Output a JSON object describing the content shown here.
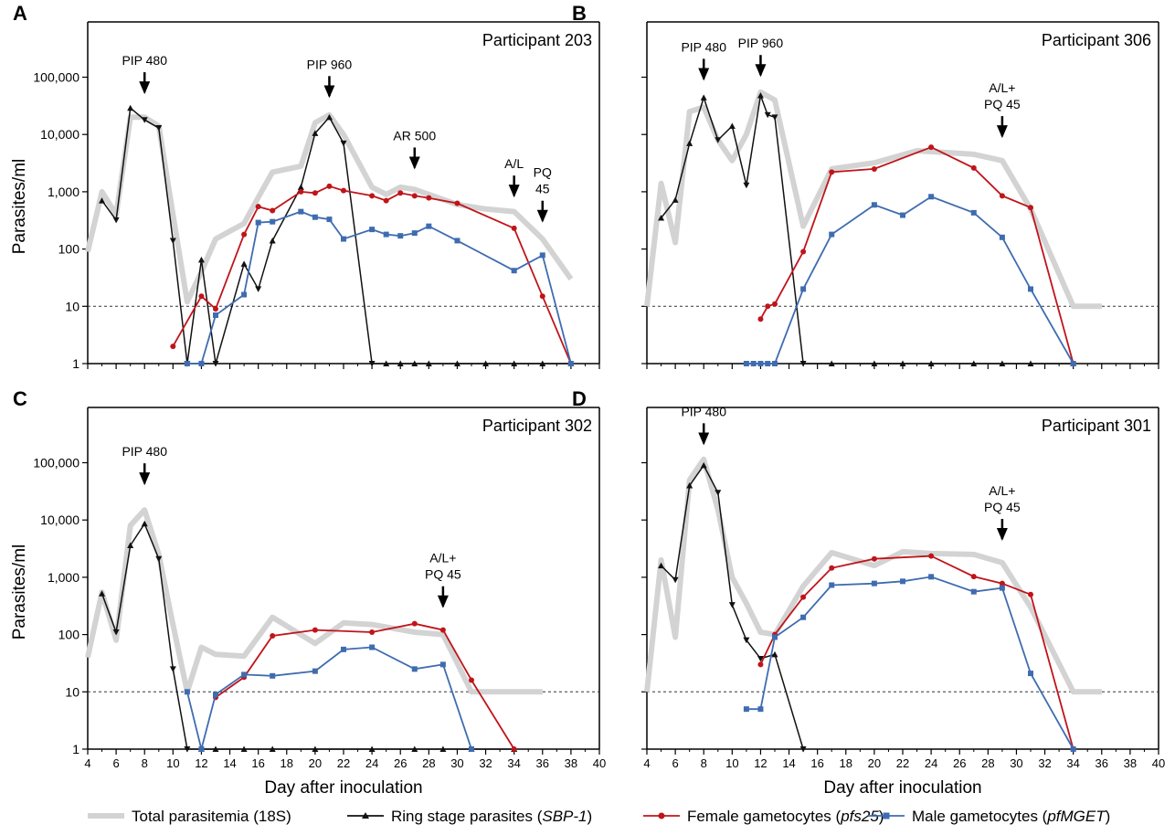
{
  "figure": {
    "ylabel": "Parasites/ml",
    "xlabel": "Day after inoculation",
    "x_ticks": [
      4,
      6,
      8,
      10,
      12,
      14,
      16,
      18,
      20,
      22,
      24,
      26,
      28,
      30,
      32,
      34,
      36,
      38,
      40
    ],
    "y_ticks": [
      {
        "value": 1,
        "label": "1"
      },
      {
        "value": 10,
        "label": "10"
      },
      {
        "value": 100,
        "label": "100"
      },
      {
        "value": 1000,
        "label": "1,000"
      },
      {
        "value": 10000,
        "label": "10,000"
      },
      {
        "value": 100000,
        "label": "100,000"
      }
    ],
    "legend": [
      {
        "key": "total",
        "prefix": "Total parasitemia (18S)",
        "gene": "",
        "suffix": ""
      },
      {
        "key": "ring",
        "prefix": "Ring stage parasites (",
        "gene": "SBP-1",
        "suffix": ")"
      },
      {
        "key": "female",
        "prefix": "Female gametocytes (",
        "gene": "pfs25",
        "suffix": ")"
      },
      {
        "key": "male",
        "prefix": "Male gametocytes (",
        "gene": "pfMGET",
        "suffix": ")"
      }
    ],
    "colors": {
      "total": "#d3d3d3",
      "ring": "#111111",
      "female": "#c0141a",
      "male": "#3f6cb0"
    }
  },
  "chart_data": [
    {
      "type": "line",
      "panel": "A",
      "title": "Participant 203",
      "xlim": [
        4,
        40
      ],
      "ylim": [
        1,
        1000000
      ],
      "yscale": "log",
      "detection_limit": 10,
      "annotations": [
        {
          "text": [
            "PIP 480"
          ],
          "x": 8,
          "arrow_to": 35000
        },
        {
          "text": [
            "PIP 960"
          ],
          "x": 21,
          "arrow_to": 30000
        },
        {
          "text": [
            "AR 500"
          ],
          "x": 27,
          "arrow_to": 1700
        },
        {
          "text": [
            "A/L"
          ],
          "x": 34,
          "arrow_to": 550
        },
        {
          "text": [
            "PQ",
            "45"
          ],
          "x": 36,
          "arrow_to": 200
        }
      ],
      "series": [
        {
          "key": "total",
          "x": [
            4,
            5,
            6,
            7,
            8,
            9,
            10,
            11,
            12,
            13,
            15,
            16,
            17,
            19,
            20,
            21,
            22,
            24,
            25,
            26,
            27,
            28,
            30,
            32,
            34,
            36,
            38
          ],
          "y": [
            90,
            1000,
            400,
            20000,
            20000,
            14000,
            400,
            12,
            40,
            150,
            280,
            800,
            2200,
            2800,
            16000,
            22000,
            10000,
            1200,
            900,
            1200,
            1100,
            900,
            600,
            500,
            450,
            150,
            30
          ]
        },
        {
          "key": "ring",
          "x": [
            5,
            6,
            7,
            8,
            9,
            10,
            11,
            12,
            13,
            15,
            16,
            17,
            19,
            20,
            21,
            22,
            24,
            25,
            26,
            27,
            28,
            30,
            32,
            34,
            36,
            38
          ],
          "y": [
            700,
            320,
            29000,
            18000,
            13000,
            140,
            1,
            65,
            1,
            55,
            20,
            140,
            1200,
            10500,
            20000,
            7000,
            1,
            1,
            1,
            1,
            1,
            1,
            1,
            1,
            1,
            1
          ]
        },
        {
          "key": "female",
          "x": [
            10,
            12,
            13,
            15,
            16,
            17,
            19,
            20,
            21,
            22,
            24,
            25,
            26,
            27,
            28,
            30,
            34,
            36,
            38
          ],
          "y": [
            2,
            15,
            9,
            180,
            550,
            470,
            1000,
            950,
            1250,
            1050,
            850,
            700,
            950,
            850,
            780,
            630,
            230,
            15,
            1
          ]
        },
        {
          "key": "male",
          "x": [
            11,
            12,
            13,
            15,
            16,
            17,
            19,
            20,
            21,
            22,
            24,
            25,
            26,
            27,
            28,
            30,
            34,
            36,
            38
          ],
          "y": [
            1,
            1,
            7,
            16,
            290,
            300,
            450,
            360,
            330,
            150,
            220,
            180,
            170,
            190,
            250,
            140,
            42,
            78,
            1
          ]
        }
      ]
    },
    {
      "type": "line",
      "panel": "B",
      "title": "Participant 306",
      "xlim": [
        4,
        40
      ],
      "ylim": [
        1,
        1000000
      ],
      "yscale": "log",
      "detection_limit": 10,
      "annotations": [
        {
          "text": [
            "PIP 480"
          ],
          "x": 8,
          "arrow_to": 60000
        },
        {
          "text": [
            "PIP 960"
          ],
          "x": 12,
          "arrow_to": 70000
        },
        {
          "text": [
            "A/L+",
            "PQ 45"
          ],
          "x": 29,
          "arrow_to": 6000
        }
      ],
      "series": [
        {
          "key": "total",
          "x": [
            4,
            5,
            6,
            7,
            8,
            9,
            10,
            11,
            12,
            13,
            15,
            17,
            20,
            23,
            27,
            29,
            31,
            34,
            36
          ],
          "y": [
            10,
            1400,
            130,
            25000,
            30000,
            8000,
            3500,
            10000,
            55000,
            40000,
            250,
            2500,
            3200,
            5200,
            4500,
            3500,
            500,
            10,
            10
          ]
        },
        {
          "key": "ring",
          "x": [
            5,
            6,
            7,
            8,
            9,
            10,
            11,
            12,
            12.5,
            13,
            15,
            17,
            20,
            22,
            24,
            27,
            29,
            31,
            34
          ],
          "y": [
            350,
            720,
            7000,
            44000,
            8000,
            14000,
            1300,
            48000,
            22000,
            20000,
            1,
            1,
            1,
            1,
            1,
            1,
            1,
            1,
            1
          ]
        },
        {
          "key": "female",
          "x": [
            12,
            12.5,
            13,
            15,
            17,
            20,
            24,
            27,
            29,
            31,
            34
          ],
          "y": [
            6,
            10,
            11,
            90,
            2200,
            2500,
            6000,
            2600,
            850,
            530,
            1
          ]
        },
        {
          "key": "male",
          "x": [
            11,
            11.5,
            12,
            12.5,
            13,
            15,
            17,
            20,
            22,
            24,
            27,
            29,
            31,
            34
          ],
          "y": [
            1,
            1,
            1,
            1,
            1,
            20,
            180,
            590,
            390,
            820,
            430,
            160,
            20,
            1
          ]
        }
      ]
    },
    {
      "type": "line",
      "panel": "C",
      "title": "Participant 302",
      "xlim": [
        4,
        40
      ],
      "ylim": [
        1,
        1000000
      ],
      "yscale": "log",
      "detection_limit": 10,
      "annotations": [
        {
          "text": [
            "PIP 480"
          ],
          "x": 8,
          "arrow_to": 28000
        },
        {
          "text": [
            "A/L+",
            "PQ 45"
          ],
          "x": 29,
          "arrow_to": 200
        }
      ],
      "series": [
        {
          "key": "total",
          "x": [
            4,
            5,
            6,
            7,
            8,
            9,
            10,
            11,
            12,
            13,
            15,
            17,
            20,
            22,
            24,
            27,
            29,
            31,
            34,
            36
          ],
          "y": [
            40,
            550,
            80,
            8000,
            15000,
            2500,
            150,
            10,
            60,
            45,
            42,
            200,
            70,
            160,
            150,
            110,
            100,
            10,
            10,
            10
          ]
        },
        {
          "key": "ring",
          "x": [
            5,
            6,
            7,
            8,
            9,
            10,
            11,
            12,
            13,
            15,
            17,
            20,
            24,
            27,
            29,
            31,
            34
          ],
          "y": [
            520,
            110,
            3600,
            8600,
            2100,
            25,
            1,
            1,
            1,
            1,
            1,
            1,
            1,
            1,
            1,
            1,
            1
          ]
        },
        {
          "key": "female",
          "x": [
            13,
            15,
            17,
            20,
            24,
            27,
            29,
            31,
            34
          ],
          "y": [
            8,
            18,
            95,
            120,
            110,
            155,
            120,
            16,
            1
          ]
        },
        {
          "key": "male",
          "x": [
            11,
            12,
            13,
            15,
            17,
            20,
            22,
            24,
            27,
            29,
            31
          ],
          "y": [
            10,
            1,
            9,
            20,
            19,
            23,
            55,
            60,
            25,
            30,
            1
          ]
        }
      ]
    },
    {
      "type": "line",
      "panel": "D",
      "title": "Participant 301",
      "xlim": [
        4,
        40
      ],
      "ylim": [
        1,
        1000000
      ],
      "yscale": "log",
      "detection_limit": 10,
      "annotations": [
        {
          "text": [
            "PIP 480"
          ],
          "x": 8,
          "arrow_to": 140000
        },
        {
          "text": [
            "A/L+",
            "PQ 45"
          ],
          "x": 29,
          "arrow_to": 3000
        }
      ],
      "series": [
        {
          "key": "total",
          "x": [
            4,
            5,
            6,
            7,
            8,
            9,
            10,
            11,
            12,
            13,
            15,
            17,
            20,
            22,
            24,
            27,
            29,
            31,
            34,
            36
          ],
          "y": [
            10,
            2000,
            90,
            50000,
            115000,
            15000,
            1000,
            350,
            110,
            100,
            700,
            2700,
            1600,
            2800,
            2600,
            2500,
            1800,
            300,
            10,
            10
          ]
        },
        {
          "key": "ring",
          "x": [
            5,
            6,
            7,
            8,
            9,
            10,
            11,
            12,
            13,
            15
          ],
          "y": [
            1600,
            900,
            40000,
            90000,
            30000,
            330,
            80,
            38,
            45,
            1
          ]
        },
        {
          "key": "female",
          "x": [
            12,
            13,
            15,
            17,
            20,
            24,
            27,
            29,
            31,
            34
          ],
          "y": [
            30,
            100,
            450,
            1450,
            2100,
            2350,
            1030,
            780,
            500,
            1
          ]
        },
        {
          "key": "male",
          "x": [
            11,
            12,
            13,
            15,
            17,
            20,
            22,
            24,
            27,
            29,
            31,
            34
          ],
          "y": [
            5,
            5,
            90,
            200,
            730,
            780,
            850,
            1020,
            560,
            650,
            21,
            1
          ]
        }
      ]
    }
  ]
}
